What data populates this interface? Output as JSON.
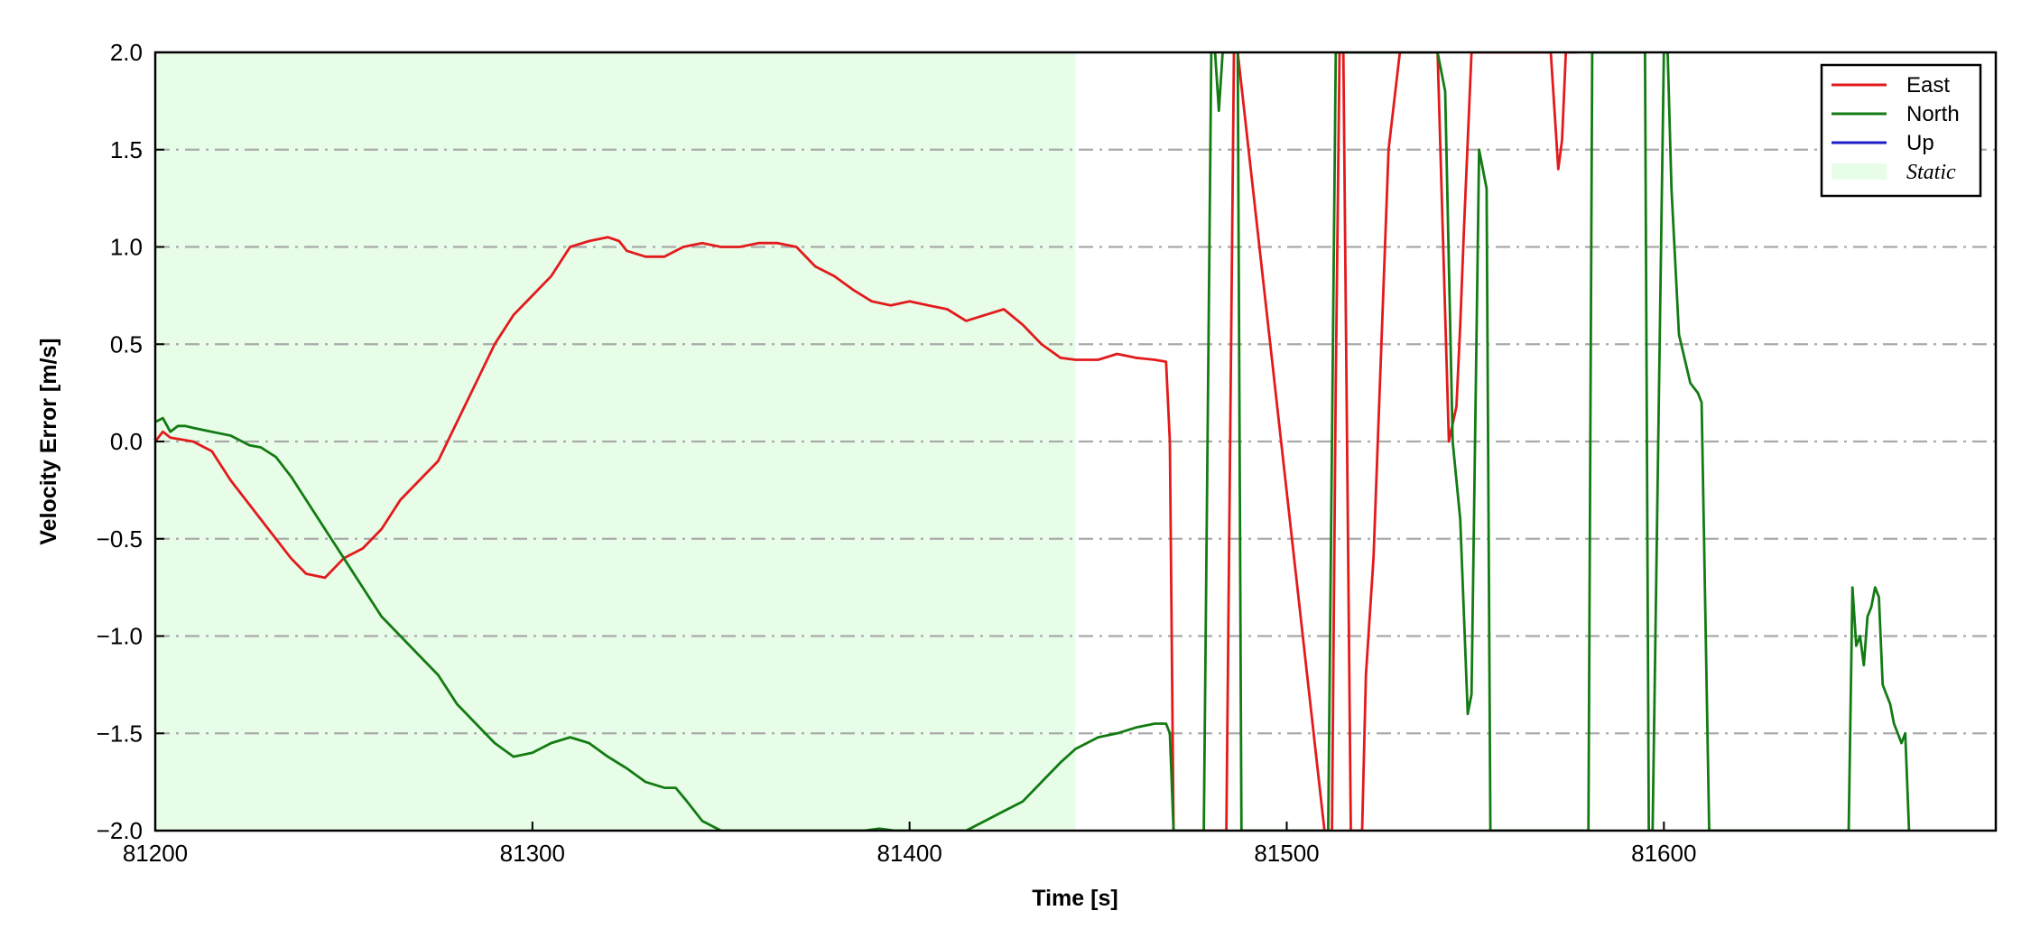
{
  "chart_data": {
    "type": "line",
    "xlabel": "Time [s]",
    "ylabel": "Velocity Error [m/s]",
    "xlim": [
      81200,
      81688
    ],
    "ylim": [
      -2.0,
      2.0
    ],
    "xticks": [
      81200,
      81300,
      81400,
      81500,
      81600
    ],
    "xtick_labels": [
      "81200",
      "81300",
      "81400",
      "81500",
      "81600"
    ],
    "yticks": [
      2.0,
      1.5,
      1.0,
      0.5,
      0.0,
      -0.5,
      -1.0,
      -1.5,
      -2.0
    ],
    "ytick_labels": [
      "2.0",
      "1.5",
      "1.0",
      "0.5",
      "0.0",
      "−0.5",
      "−1.0",
      "−1.5",
      "−2.0"
    ],
    "grid": "horizontal dash-dot",
    "legend_position": "top-right",
    "static_region": {
      "label": "Static",
      "x_start": 81200,
      "x_end": 81444,
      "color": "#e8fde8"
    },
    "series": [
      {
        "name": "East",
        "color": "#e31a1c",
        "x": [
          81200,
          81202,
          81204,
          81210,
          81215,
          81220,
          81230,
          81236,
          81240,
          81245,
          81250,
          81255,
          81260,
          81265,
          81270,
          81275,
          81280,
          81285,
          81290,
          81295,
          81300,
          81305,
          81310,
          81315,
          81320,
          81323,
          81325,
          81330,
          81335,
          81340,
          81345,
          81350,
          81355,
          81360,
          81365,
          81370,
          81375,
          81380,
          81385,
          81390,
          81395,
          81400,
          81405,
          81410,
          81415,
          81420,
          81425,
          81430,
          81435,
          81440,
          81444,
          81450,
          81455,
          81460,
          81465,
          81468,
          81469,
          81470,
          81480,
          81484,
          81485,
          81486,
          81487,
          81510,
          81512,
          81513,
          81514,
          81515,
          81516,
          81517,
          81518,
          81520,
          81521,
          81523,
          81527,
          81530,
          81531,
          81540,
          81543,
          81545,
          81546,
          81547,
          81549,
          81551,
          81555,
          81570,
          81572,
          81573,
          81574,
          81575,
          81576,
          81577
        ],
        "y": [
          0.0,
          0.05,
          0.02,
          0.0,
          -0.05,
          -0.2,
          -0.45,
          -0.6,
          -0.68,
          -0.7,
          -0.6,
          -0.55,
          -0.45,
          -0.3,
          -0.2,
          -0.1,
          0.1,
          0.3,
          0.5,
          0.65,
          0.75,
          0.85,
          1.0,
          1.03,
          1.05,
          1.03,
          0.98,
          0.95,
          0.95,
          1.0,
          1.02,
          1.0,
          1.0,
          1.02,
          1.02,
          1.0,
          0.9,
          0.85,
          0.78,
          0.72,
          0.7,
          0.72,
          0.7,
          0.68,
          0.62,
          0.65,
          0.68,
          0.6,
          0.5,
          0.43,
          0.42,
          0.42,
          0.45,
          0.43,
          0.42,
          0.41,
          0.0,
          -2.0,
          -2.0,
          -2.0,
          0.0,
          2.0,
          2.0,
          -2.0,
          -2.0,
          0.3,
          2.0,
          2.0,
          0.0,
          -2.0,
          -2.0,
          -2.0,
          -1.2,
          -0.6,
          1.5,
          2.0,
          2.0,
          2.0,
          0.0,
          0.18,
          0.6,
          1.1,
          2.0,
          2.0,
          2.0,
          2.0,
          1.4,
          1.55,
          2.0,
          2.0,
          2.0,
          2.0
        ]
      },
      {
        "name": "North",
        "color": "#137b13",
        "x": [
          81200,
          81202,
          81204,
          81206,
          81208,
          81210,
          81215,
          81220,
          81225,
          81228,
          81232,
          81236,
          81240,
          81245,
          81250,
          81255,
          81260,
          81265,
          81270,
          81275,
          81280,
          81285,
          81290,
          81295,
          81300,
          81305,
          81310,
          81315,
          81320,
          81325,
          81330,
          81335,
          81338,
          81341,
          81345,
          81350,
          81388,
          81392,
          81396,
          81400,
          81415,
          81420,
          81425,
          81430,
          81435,
          81440,
          81444,
          81450,
          81455,
          81460,
          81465,
          81468,
          81469,
          81470,
          81478,
          81480,
          81481,
          81482,
          81483,
          81484,
          81485,
          81486,
          81487,
          81488,
          81511,
          81513,
          81515,
          81517,
          81519,
          81521,
          81523,
          81525,
          81530,
          81535,
          81540,
          81542,
          81544,
          81546,
          81548,
          81549,
          81551,
          81553,
          81554,
          81580,
          81581,
          81582,
          81590,
          81593,
          81595,
          81596,
          81597,
          81600,
          81601,
          81602,
          81604,
          81607,
          81609,
          81610,
          81612,
          81613,
          81614,
          81649,
          81650,
          81651,
          81652,
          81653,
          81654,
          81655,
          81656,
          81657,
          81658,
          81659,
          81660,
          81661,
          81662,
          81663,
          81664,
          81665
        ],
        "y": [
          0.1,
          0.12,
          0.05,
          0.08,
          0.08,
          0.07,
          0.05,
          0.03,
          -0.02,
          -0.03,
          -0.08,
          -0.18,
          -0.3,
          -0.45,
          -0.6,
          -0.75,
          -0.9,
          -1.0,
          -1.1,
          -1.2,
          -1.35,
          -1.45,
          -1.55,
          -1.62,
          -1.6,
          -1.55,
          -1.52,
          -1.55,
          -1.62,
          -1.68,
          -1.75,
          -1.78,
          -1.78,
          -1.85,
          -1.95,
          -2.0,
          -2.0,
          -1.99,
          -2.0,
          -2.0,
          -2.0,
          -1.95,
          -1.9,
          -1.85,
          -1.75,
          -1.65,
          -1.58,
          -1.52,
          -1.5,
          -1.47,
          -1.45,
          -1.45,
          -1.5,
          -2.0,
          -2.0,
          2.0,
          2.0,
          1.7,
          2.0,
          2.0,
          2.0,
          2.0,
          2.0,
          -2.0,
          -2.0,
          2.0,
          2.0,
          2.0,
          2.0,
          2.0,
          2.0,
          2.0,
          2.0,
          2.0,
          2.0,
          1.8,
          0.0,
          -0.4,
          -1.4,
          -1.3,
          1.5,
          1.3,
          -2.0,
          -2.0,
          2.0,
          2.0,
          2.0,
          2.0,
          2.0,
          -2.0,
          -2.0,
          2.0,
          2.0,
          1.3,
          0.55,
          0.3,
          0.25,
          0.2,
          -2.0,
          -2.0,
          -2.0,
          -2.0,
          -0.75,
          -1.05,
          -1.0,
          -1.15,
          -0.9,
          -0.85,
          -0.75,
          -0.8,
          -1.25,
          -1.3,
          -1.35,
          -1.45,
          -1.5,
          -1.55,
          -1.5,
          -2.0
        ]
      },
      {
        "name": "Up",
        "color": "#1f1fc8",
        "x": [],
        "y": []
      }
    ]
  }
}
